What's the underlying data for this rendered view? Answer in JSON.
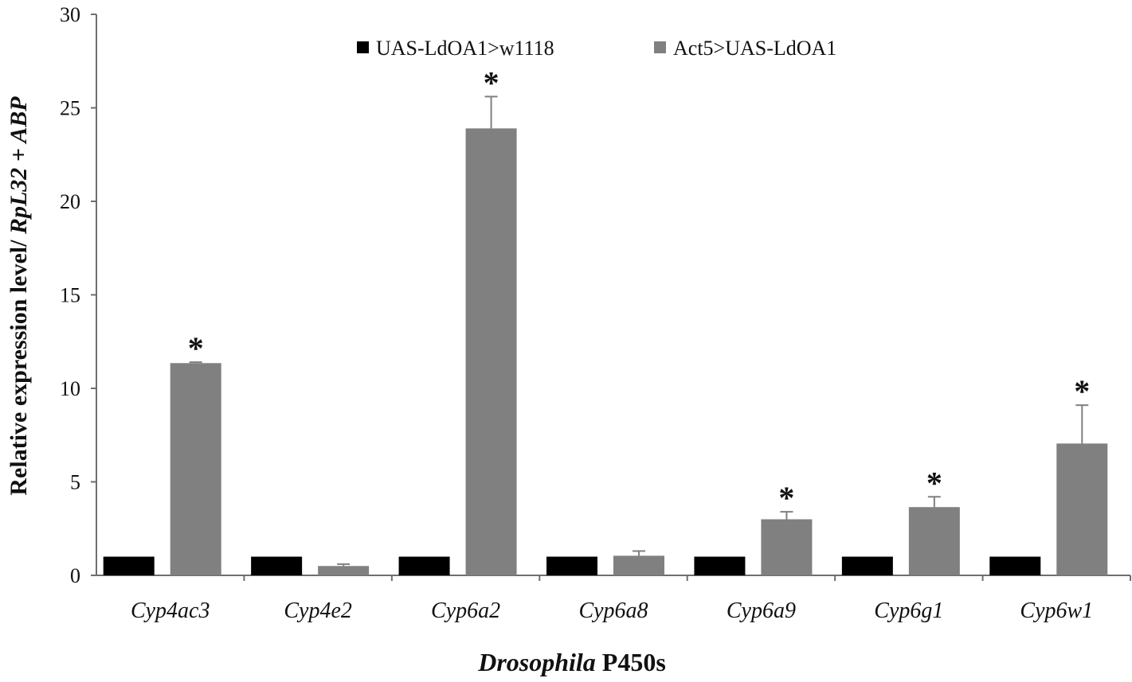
{
  "chart_data": {
    "type": "bar",
    "categories": [
      "Cyp4ac3",
      "Cyp4e2",
      "Cyp6a2",
      "Cyp6a8",
      "Cyp6a9",
      "Cyp6g1",
      "Cyp6w1"
    ],
    "series": [
      {
        "name": "UAS-LdOA1>w1118",
        "color": "#000000",
        "values": [
          1,
          1,
          1,
          1,
          1,
          1,
          1
        ],
        "errors": [
          0,
          0,
          0,
          0,
          0,
          0,
          0
        ]
      },
      {
        "name": "Act5>UAS-LdOA1",
        "color": "#808080",
        "values": [
          11.35,
          0.5,
          23.9,
          1.05,
          3.0,
          3.65,
          7.05
        ],
        "errors": [
          0.05,
          0.1,
          1.7,
          0.25,
          0.4,
          0.55,
          2.05
        ]
      }
    ],
    "significance": [
      {
        "category": "Cyp4ac3",
        "series": "Act5>UAS-LdOA1",
        "label": "*"
      },
      {
        "category": "Cyp6a2",
        "series": "Act5>UAS-LdOA1",
        "label": "*"
      },
      {
        "category": "Cyp6a9",
        "series": "Act5>UAS-LdOA1",
        "label": "*"
      },
      {
        "category": "Cyp6g1",
        "series": "Act5>UAS-LdOA1",
        "label": "*"
      },
      {
        "category": "Cyp6w1",
        "series": "Act5>UAS-LdOA1",
        "label": "*"
      }
    ],
    "title": "",
    "xlabel_italic": "Drosophila",
    "xlabel_rest": " P450s",
    "ylabel_plain": "Relative  expression level/ ",
    "ylabel_italic": "RpL32 + ABP",
    "ylim": [
      0,
      30
    ],
    "yticks": [
      0,
      5,
      10,
      15,
      20,
      25,
      30
    ],
    "grid": false,
    "legend_position": "top-center"
  }
}
